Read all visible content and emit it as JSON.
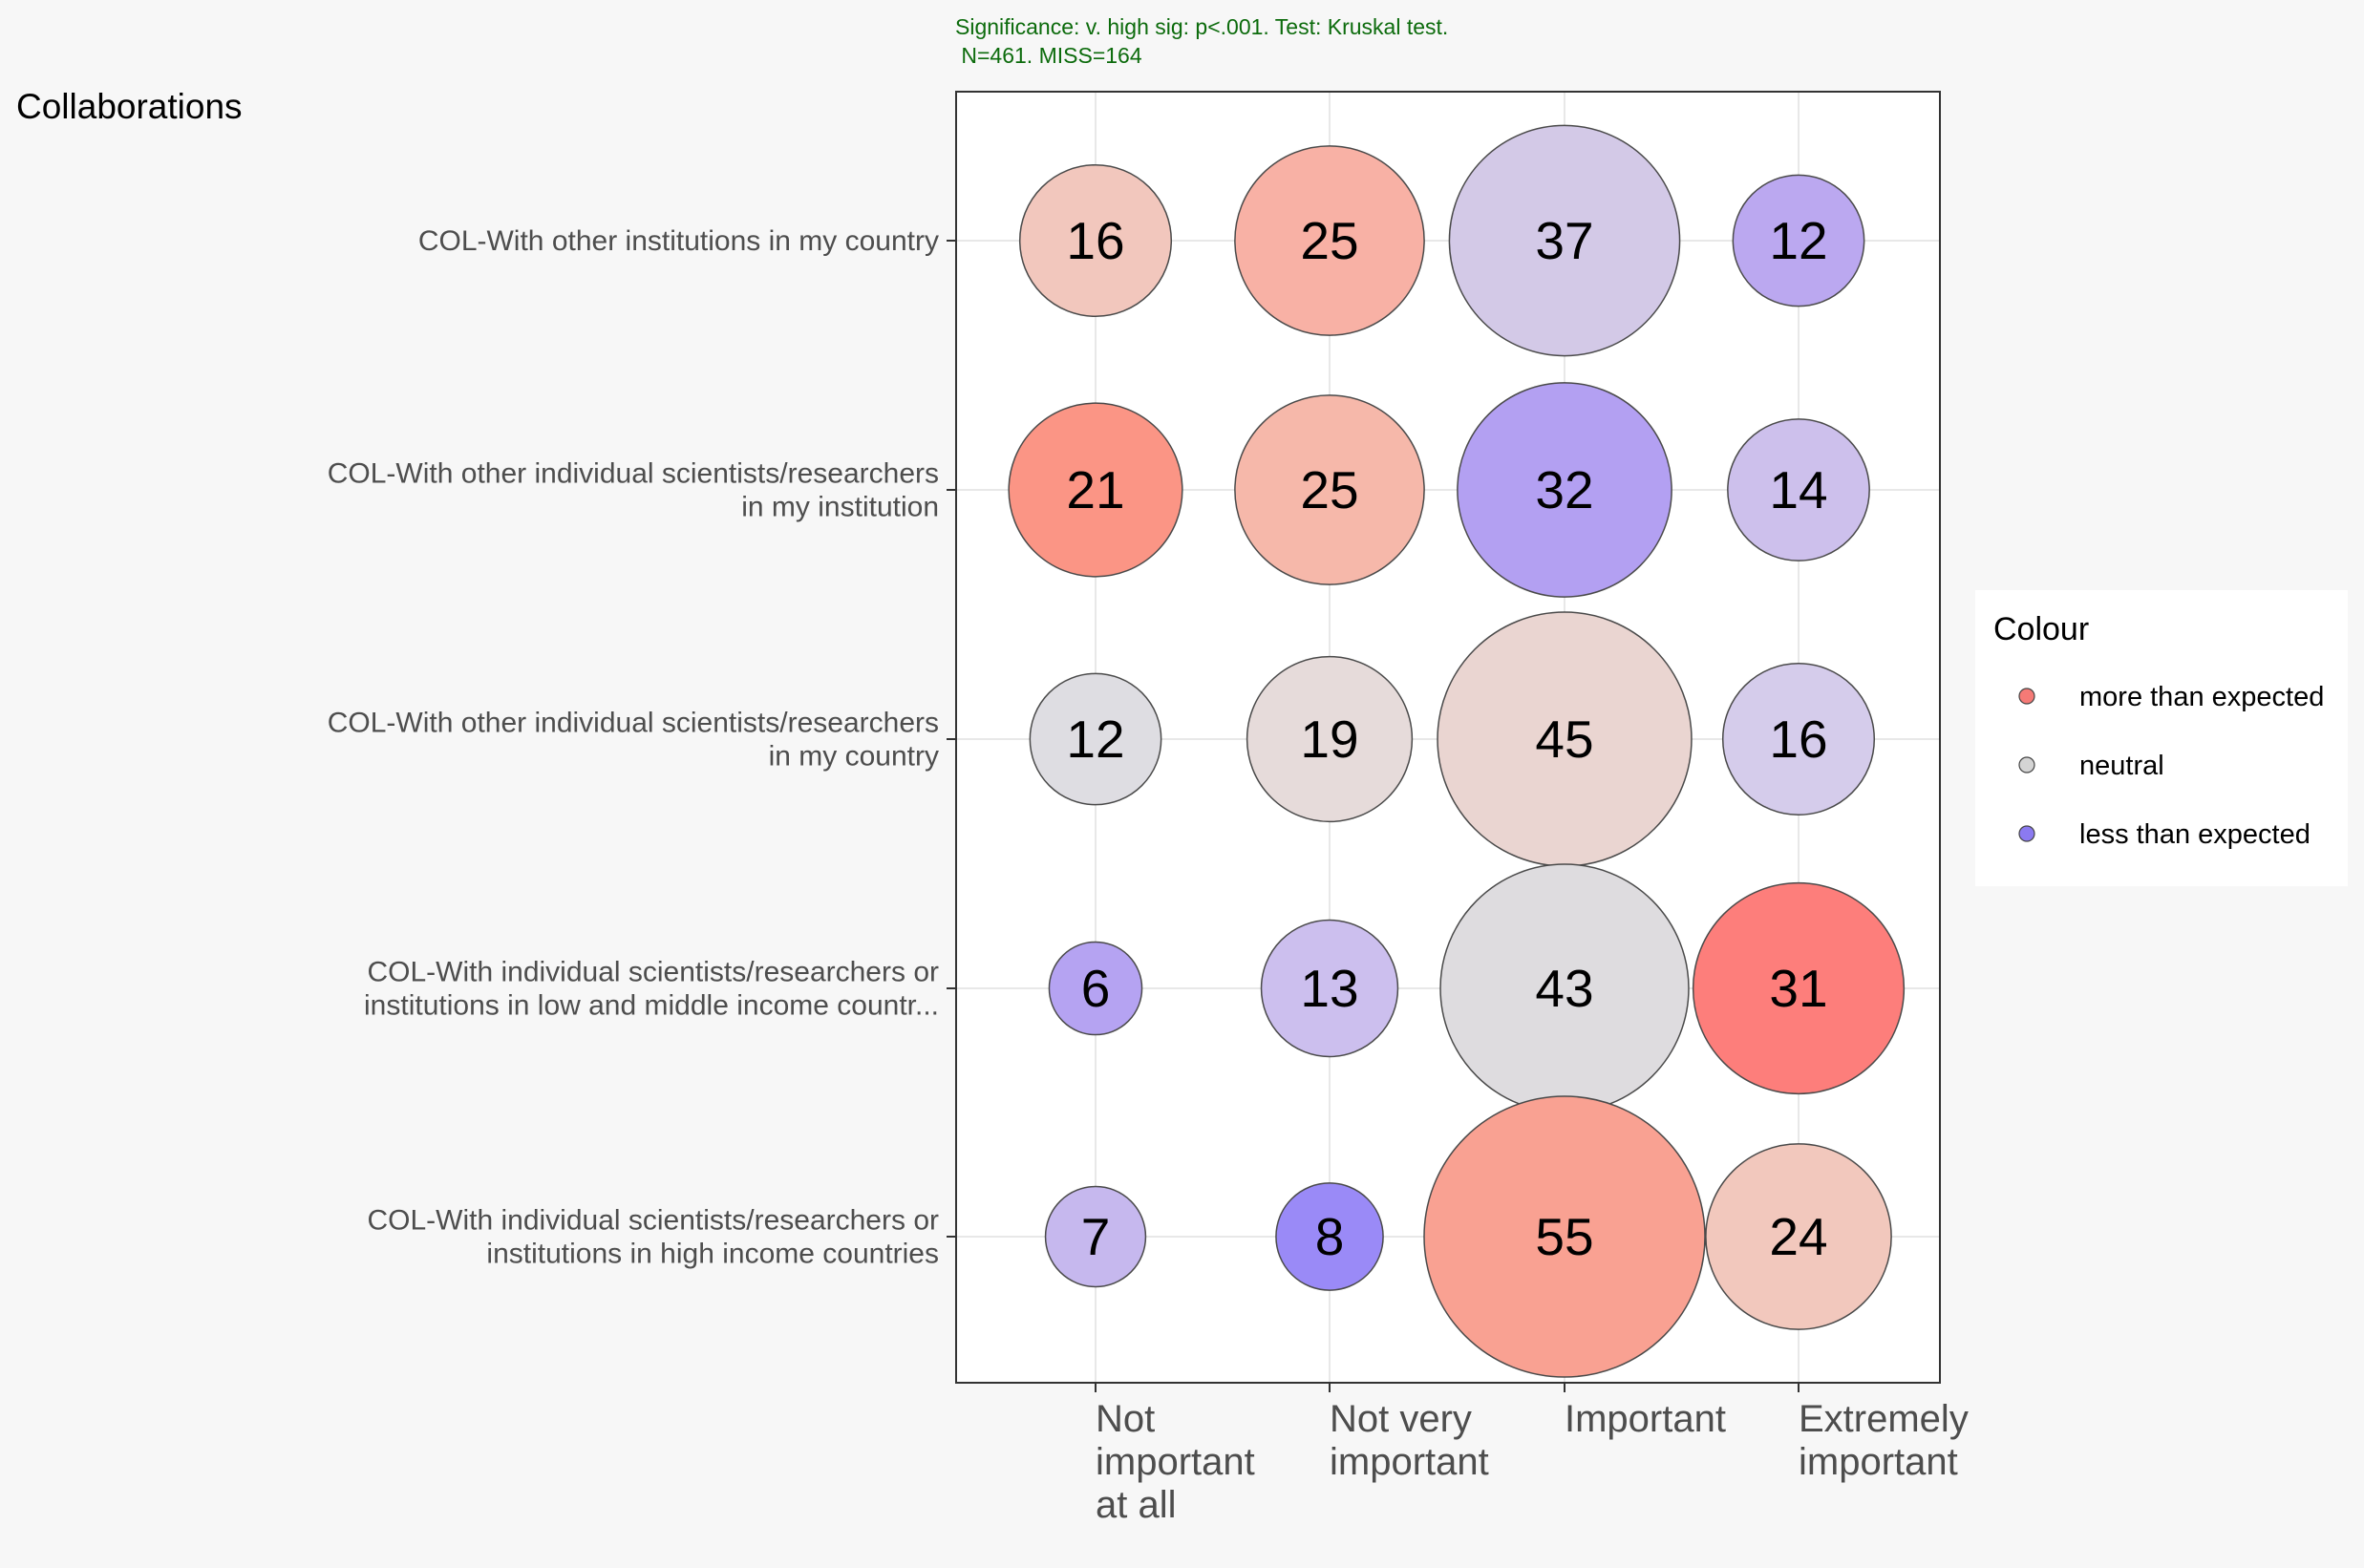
{
  "chart_data": {
    "type": "bubble",
    "title": "Collaborations",
    "subtitle_lines": [
      "Significance: v. high sig: p<.001. Test: Kruskal test.",
      " N=461. MISS=164"
    ],
    "x_categories": [
      [
        "Not",
        "important",
        "at all"
      ],
      [
        "Not very",
        "important"
      ],
      [
        "Important"
      ],
      [
        "Extremely",
        "important"
      ]
    ],
    "y_categories": [
      [
        "COL-With other institutions in my country"
      ],
      [
        "COL-With other individual scientists/researchers",
        "in my institution"
      ],
      [
        "COL-With other individual scientists/researchers",
        "in my country"
      ],
      [
        "COL-With individual scientists/researchers or",
        "institutions in low and middle income countr..."
      ],
      [
        "COL-With individual scientists/researchers or",
        "institutions in high income countries"
      ]
    ],
    "cells": [
      [
        {
          "value": 16,
          "color": "#f2c7bd"
        },
        {
          "value": 25,
          "color": "#f8b1a5"
        },
        {
          "value": 37,
          "color": "#d3c9e7"
        },
        {
          "value": 12,
          "color": "#bba8f0"
        }
      ],
      [
        {
          "value": 21,
          "color": "#fb9585"
        },
        {
          "value": 25,
          "color": "#f6b8aa"
        },
        {
          "value": 32,
          "color": "#b3a0f2"
        },
        {
          "value": 14,
          "color": "#cdc0ec"
        }
      ],
      [
        {
          "value": 12,
          "color": "#dedde2"
        },
        {
          "value": 19,
          "color": "#e6dbda"
        },
        {
          "value": 45,
          "color": "#ead5d1"
        },
        {
          "value": 16,
          "color": "#d5cceb"
        }
      ],
      [
        {
          "value": 6,
          "color": "#b5a3f2"
        },
        {
          "value": 13,
          "color": "#ccbfee"
        },
        {
          "value": 43,
          "color": "#dedcdf"
        },
        {
          "value": 31,
          "color": "#fd7e7b"
        }
      ],
      [
        {
          "value": 7,
          "color": "#c6b8ee"
        },
        {
          "value": 8,
          "color": "#9a8af7"
        },
        {
          "value": 55,
          "color": "#f9a192"
        },
        {
          "value": 24,
          "color": "#f2c8bd"
        }
      ]
    ],
    "size_scale": {
      "max_value": 55
    },
    "legend": {
      "title": "Colour",
      "position": "right",
      "items": [
        {
          "label": "more than expected",
          "color": "#f57a76"
        },
        {
          "label": "neutral",
          "color": "#d4d4d4"
        },
        {
          "label": "less than expected",
          "color": "#8b7af0"
        }
      ]
    },
    "grid": true
  },
  "colors": {
    "background": "#f7f7f7",
    "panel": "#ffffff",
    "subtitle": "#0c6b0c",
    "text": "#000000",
    "axis_text": "#4d4d4d",
    "gridline": "#e8e8e8"
  }
}
